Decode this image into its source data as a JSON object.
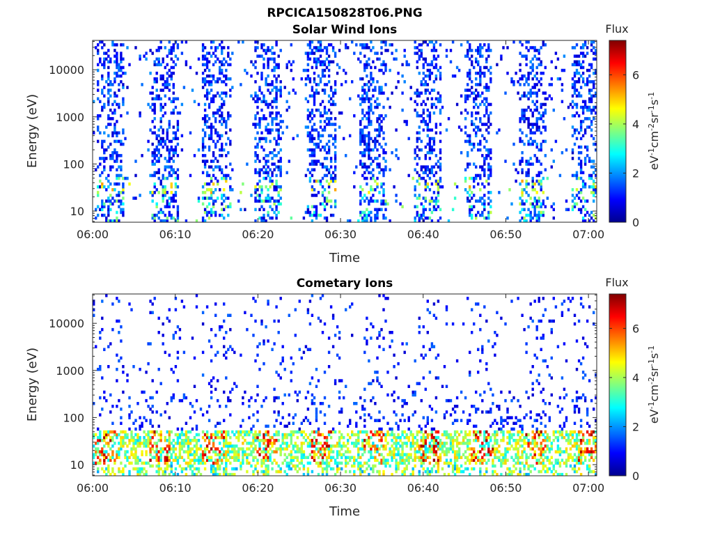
{
  "figure": {
    "title": "RPCICA150828T06.PNG"
  },
  "colors": {
    "colormap": [
      "#00008f",
      "#0000ff",
      "#0080ff",
      "#00ffff",
      "#80ff80",
      "#ffff00",
      "#ff8000",
      "#ff0000",
      "#800000"
    ],
    "axes": "#262626"
  },
  "chart_data": [
    {
      "type": "heatmap",
      "title": "Solar Wind Ions",
      "xlabel": "Time",
      "ylabel": "Energy (eV)",
      "xticks": [
        "06:00",
        "06:10",
        "06:20",
        "06:30",
        "06:40",
        "06:50",
        "07:00"
      ],
      "xlim_minutes": [
        0,
        61
      ],
      "yscale": "log",
      "yticks": [
        {
          "value": 10,
          "label": "10"
        },
        {
          "value": 100,
          "label": "100"
        },
        {
          "value": 1000,
          "label": "1000"
        },
        {
          "value": 10000,
          "label": "10000"
        }
      ],
      "ylim": [
        5.8,
        42000
      ],
      "colorbar": {
        "title": "Flux",
        "label": "eV-1cm-2sr-1s-1",
        "range": [
          0,
          7.4
        ],
        "ticks": [
          0,
          2,
          4,
          6
        ],
        "tick_labels": [
          "0",
          "2",
          "4",
          "6"
        ]
      },
      "scan_bursts_start_minutes": [
        0.5,
        7.0,
        13.3,
        19.5,
        26.0,
        32.2,
        38.8,
        45.0,
        51.5,
        58.0
      ],
      "max_flux": 5.4
    },
    {
      "type": "heatmap",
      "title": "Cometary Ions",
      "xlabel": "Time",
      "ylabel": "Energy (eV)",
      "xticks": [
        "06:00",
        "06:10",
        "06:20",
        "06:30",
        "06:40",
        "06:50",
        "07:00"
      ],
      "xlim_minutes": [
        0,
        61
      ],
      "yscale": "log",
      "yticks": [
        {
          "value": 10,
          "label": "10"
        },
        {
          "value": 100,
          "label": "100"
        },
        {
          "value": 1000,
          "label": "1000"
        },
        {
          "value": 10000,
          "label": "10000"
        }
      ],
      "ylim": [
        5.8,
        42000
      ],
      "colorbar": {
        "title": "Flux",
        "label": "eV-1cm-2sr-1s-1",
        "range": [
          0,
          7.4
        ],
        "ticks": [
          0,
          2,
          4,
          6
        ],
        "tick_labels": [
          "0",
          "2",
          "4",
          "6"
        ]
      },
      "peak_energy_band_eV": [
        10,
        40
      ],
      "max_flux": 7.2
    }
  ]
}
